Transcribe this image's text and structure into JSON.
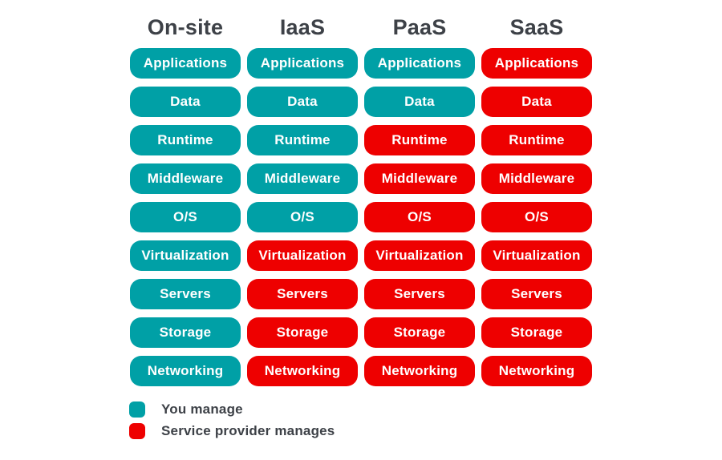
{
  "layers": [
    "Applications",
    "Data",
    "Runtime",
    "Middleware",
    "O/S",
    "Virtualization",
    "Servers",
    "Storage",
    "Networking"
  ],
  "columns": [
    {
      "label": "On-site",
      "cells": [
        "you",
        "you",
        "you",
        "you",
        "you",
        "you",
        "you",
        "you",
        "you"
      ]
    },
    {
      "label": "IaaS",
      "cells": [
        "you",
        "you",
        "you",
        "you",
        "you",
        "provider",
        "provider",
        "provider",
        "provider"
      ]
    },
    {
      "label": "PaaS",
      "cells": [
        "you",
        "you",
        "provider",
        "provider",
        "provider",
        "provider",
        "provider",
        "provider",
        "provider"
      ]
    },
    {
      "label": "SaaS",
      "cells": [
        "provider",
        "provider",
        "provider",
        "provider",
        "provider",
        "provider",
        "provider",
        "provider",
        "provider"
      ]
    }
  ],
  "legend": [
    {
      "key": "you",
      "label": "You manage"
    },
    {
      "key": "provider",
      "label": "Service provider manages"
    }
  ],
  "colors": {
    "you": "#00A0A6",
    "provider": "#EE0000",
    "heading_text": "#3D4147",
    "pill_text": "#FFFFFF",
    "background": "#FFFFFF"
  }
}
